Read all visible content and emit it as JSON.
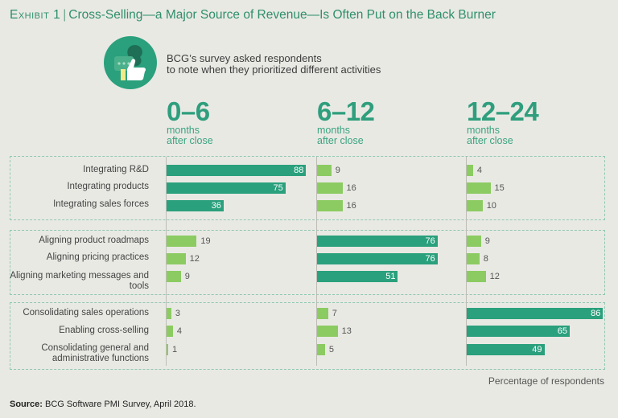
{
  "header": {
    "exhibit": "Exhibit 1",
    "separator": "|",
    "title": "Cross-Selling—a Major Source of Revenue—Is Often Put on the Back Burner"
  },
  "intro": {
    "line1": "BCG’s survey asked respondents",
    "line2": "to note when they prioritized different activities"
  },
  "icon": {
    "name": "chat-and-thumbs-up-icon"
  },
  "colors": {
    "accent": "#2aa07c",
    "highlight": "#2aa07c",
    "secondary": "#8ccb62",
    "frame": "#8fc8b1"
  },
  "footer": {
    "xlabel": "Percentage of respondents",
    "source_label": "Source:",
    "source_text": "BCG Software PMI Survey, April 2018."
  },
  "chart_data": {
    "type": "bar",
    "orientation": "horizontal",
    "xlabel": "Percentage of respondents",
    "xlim": [
      0,
      100
    ],
    "grid": false,
    "periods": [
      {
        "range": "0–6",
        "unit1": "months",
        "unit2": "after close"
      },
      {
        "range": "6–12",
        "unit1": "months",
        "unit2": "after close"
      },
      {
        "range": "12–24",
        "unit1": "months",
        "unit2": "after close"
      }
    ],
    "groups": [
      {
        "categories": [
          "Integrating R&D",
          "Integrating products",
          "Integrating sales forces"
        ],
        "highlight_period": 0
      },
      {
        "categories": [
          "Aligning product roadmaps",
          "Aligning pricing practices",
          "Aligning marketing messages and tools"
        ],
        "highlight_period": 1
      },
      {
        "categories": [
          "Consolidating sales operations",
          "Enabling cross-selling",
          "Consolidating general and administrative functions"
        ],
        "highlight_period": 2
      }
    ],
    "categories": [
      "Integrating R&D",
      "Integrating products",
      "Integrating sales forces",
      "Aligning product roadmaps",
      "Aligning pricing practices",
      "Aligning marketing messages and tools",
      "Consolidating sales operations",
      "Enabling cross-selling",
      "Consolidating general and administrative functions"
    ],
    "series": [
      {
        "name": "0–6 months after close",
        "values": [
          88,
          75,
          36,
          19,
          12,
          9,
          3,
          4,
          1
        ]
      },
      {
        "name": "6–12 months after close",
        "values": [
          9,
          16,
          16,
          76,
          76,
          51,
          7,
          13,
          5
        ]
      },
      {
        "name": "12–24 months after close",
        "values": [
          4,
          15,
          10,
          9,
          8,
          12,
          86,
          65,
          49
        ]
      }
    ]
  }
}
